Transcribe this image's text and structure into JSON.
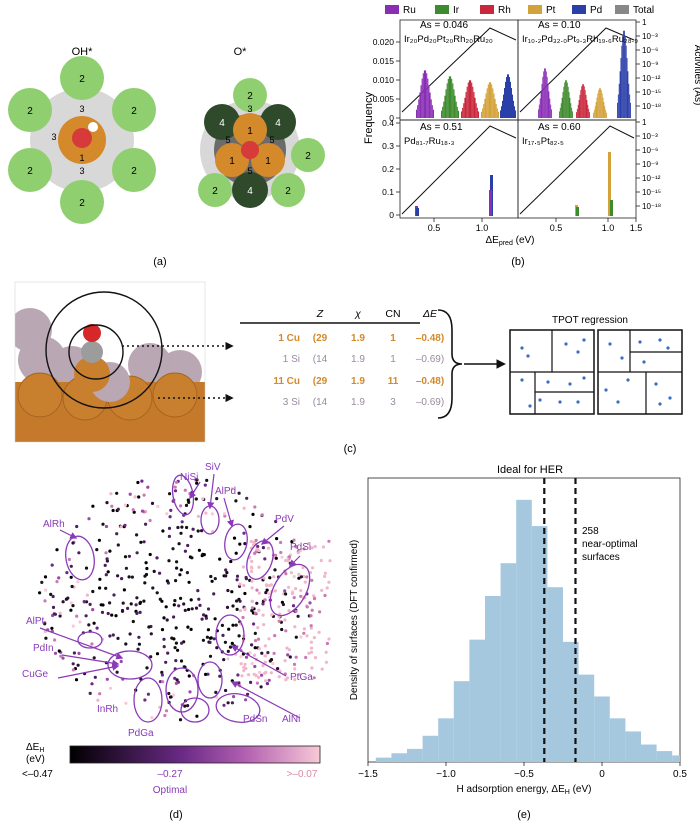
{
  "panel_labels": {
    "a": "(a)",
    "b": "(b)",
    "c": "(c)",
    "d": "(d)",
    "e": "(e)"
  },
  "panel_a": {
    "left_title": "OH*",
    "right_title": "O*",
    "left_numbers": {
      "outer": "2",
      "mid": "3",
      "center": "1"
    },
    "right_numbers": {
      "outer": "2",
      "dark": "4",
      "mid": "3",
      "five": "5",
      "center": "1"
    },
    "colors": {
      "light_green": "#8fcf6f",
      "dark_green": "#2e4a2a",
      "orange": "#d4892b",
      "red": "#d63a3a",
      "grey": "#cfcfcf",
      "dark_grey": "#6b6b6b"
    }
  },
  "panel_b": {
    "legend": [
      {
        "name": "Ru",
        "color": "#8a2fb5"
      },
      {
        "name": "Ir",
        "color": "#3e8a2e"
      },
      {
        "name": "Rh",
        "color": "#c8283c"
      },
      {
        "name": "Pt",
        "color": "#d4a23a"
      },
      {
        "name": "Pd",
        "color": "#2a3fa8"
      },
      {
        "name": "Total",
        "color": "#888888"
      }
    ],
    "ylabel_left": "Frequency",
    "ylabel_right": "Activities (As)",
    "xlabel": "ΔE",
    "xlabel_sub": "pred",
    "xlabel_unit": " (eV)",
    "left_ticks_top": [
      "0",
      "0.005",
      "0.010",
      "0.015",
      "0.020"
    ],
    "left_ticks_bottom": [
      "0",
      "0.1",
      "0.2",
      "0.3",
      "0.4"
    ],
    "right_ticks": [
      "1",
      "10⁻³",
      "10⁻⁶",
      "10⁻⁹",
      "10⁻¹²",
      "10⁻¹⁵",
      "10⁻¹⁸"
    ],
    "xticks": [
      "0.5",
      "1.0",
      "0.5",
      "1.0",
      "1.5"
    ],
    "subplots": [
      {
        "as_label": "As = 0.046",
        "composition": "Ir₂₀Pd₂₀Pt₂₀Rh₂₀Ru₂₀"
      },
      {
        "as_label": "As = 0.10",
        "composition": "Ir₁₀.₂Pd₃₂.₀Pt₉.₃Rh₁₉.₆Ru₂₈.₉"
      },
      {
        "as_label": "As = 0.51",
        "composition": "Pd₈₁.₇Ru₁₈.₃"
      },
      {
        "as_label": "As = 0.60",
        "composition": "Ir₁₇.₅Pt₈₂.₅"
      }
    ]
  },
  "panel_c": {
    "headers": [
      "Z",
      "χ",
      "CN",
      "ΔE"
    ],
    "rows": [
      {
        "atom": "1 Cu",
        "z": "(29",
        "chi": "1.9",
        "cn": "1",
        "de": "–0.48)",
        "color": "#d4892b"
      },
      {
        "atom": "1 Si",
        "z": "(14",
        "chi": "1.9",
        "cn": "1",
        "de": "–0.69)",
        "color": "#9a8aa0"
      },
      {
        "atom": "11 Cu",
        "z": "(29",
        "chi": "1.9",
        "cn": "11",
        "de": "–0.48)",
        "color": "#d4892b"
      },
      {
        "atom": "3 Si",
        "z": "(14",
        "chi": "1.9",
        "cn": "3",
        "de": "–0.69)",
        "color": "#9a8aa0"
      }
    ],
    "tpot_title": "TPOT regression"
  },
  "panel_d": {
    "labels": [
      "NiSi",
      "SiV",
      "AlPd",
      "PdV",
      "AlRh",
      "PdSi",
      "AlPt",
      "PdIn",
      "CuGe",
      "PtGa",
      "InRh",
      "PdSn",
      "AlNi",
      "PdGa"
    ],
    "colorbar_title": "ΔE",
    "colorbar_title_sub": "H",
    "colorbar_unit": "(eV)",
    "colorbar_ticks": [
      "<–0.47",
      "–0.27",
      ">–0.07"
    ],
    "colorbar_caption": "Optimal",
    "label_color": "#8a3ab9"
  },
  "panel_e": {
    "title": "Ideal for HER",
    "annotation": [
      "258",
      "near-optimal",
      "surfaces"
    ],
    "ylabel": "Density of surfaces (DFT confirmed)",
    "xlabel": "H adsorption energy, ΔE",
    "xlabel_sub": "H",
    "xlabel_unit": " (eV)",
    "bar_color": "#a6c8df"
  },
  "chart_data": {
    "type": "bar",
    "x_bin_edges_start": -1.45,
    "bin_width": 0.1,
    "values": [
      2,
      4,
      6,
      12,
      20,
      37,
      56,
      76,
      91,
      120,
      108,
      80,
      55,
      40,
      30,
      20,
      14,
      8,
      5,
      3
    ],
    "xlabel": "H adsorption energy, ΔE_H (eV)",
    "ylabel": "Density of surfaces (DFT confirmed)",
    "xlim": [
      -1.5,
      0.5
    ],
    "ylim": [
      0,
      130
    ],
    "xticks": [
      "-1.5",
      "-1.0",
      "-0.5",
      "0",
      "0.5"
    ],
    "annotations": [
      {
        "x": -0.37,
        "style": "dashed"
      },
      {
        "x": -0.17,
        "style": "dashed"
      }
    ]
  }
}
